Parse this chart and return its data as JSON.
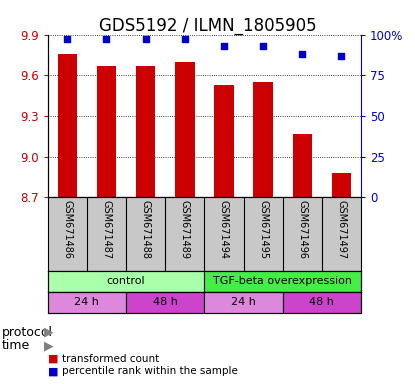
{
  "title": "GDS5192 / ILMN_1805905",
  "samples": [
    "GSM671486",
    "GSM671487",
    "GSM671488",
    "GSM671489",
    "GSM671494",
    "GSM671495",
    "GSM671496",
    "GSM671497"
  ],
  "transformed_count": [
    9.76,
    9.67,
    9.67,
    9.7,
    9.53,
    9.55,
    9.17,
    8.88
  ],
  "percentile_rank": [
    97,
    97,
    97,
    97,
    93,
    93,
    88,
    87
  ],
  "ylim_left": [
    8.7,
    9.9
  ],
  "ylim_right": [
    0,
    100
  ],
  "yticks_left": [
    8.7,
    9.0,
    9.3,
    9.6,
    9.9
  ],
  "yticks_right": [
    0,
    25,
    50,
    75,
    100
  ],
  "bar_color": "#cc0000",
  "dot_color": "#0000cc",
  "bg_color": "#ffffff",
  "label_bg_color": "#c8c8c8",
  "protocol_control_color": "#aaffaa",
  "protocol_tgf_color": "#44ee44",
  "time_light_color": "#dd88dd",
  "time_dark_color": "#cc44cc",
  "title_fontsize": 12,
  "tick_fontsize": 8.5,
  "bar_width": 0.5
}
